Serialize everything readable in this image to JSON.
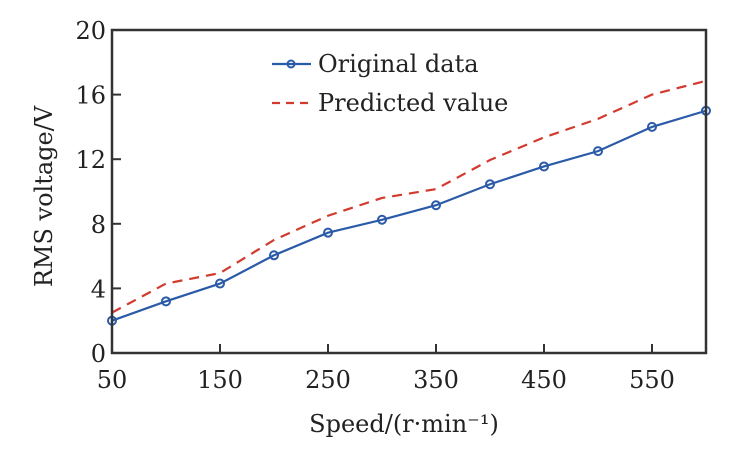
{
  "chart_data": {
    "type": "line",
    "title": "",
    "xlabel": "Speed/(r·min⁻¹)",
    "ylabel": "RMS voltage/V",
    "xlim": [
      50,
      600
    ],
    "ylim": [
      0,
      20
    ],
    "xticks": [
      50,
      150,
      250,
      350,
      450,
      550
    ],
    "xtick_labels": [
      "50",
      "150",
      "250",
      "350",
      "450",
      "550"
    ],
    "yticks": [
      0,
      4,
      8,
      12,
      16,
      20
    ],
    "ytick_labels": [
      "0",
      "4",
      "8",
      "12",
      "16",
      "20"
    ],
    "grid": false,
    "legend_position": "top-center",
    "x": [
      50,
      100,
      150,
      200,
      250,
      300,
      350,
      400,
      450,
      500,
      550,
      600
    ],
    "series": [
      {
        "name": "Original data",
        "style": "solid-circle-markers",
        "color": "#2b5ba8",
        "values": [
          2.0,
          3.2,
          4.3,
          6.05,
          7.45,
          8.25,
          9.15,
          10.45,
          11.55,
          12.5,
          14.0,
          15.0
        ]
      },
      {
        "name": "Predicted value",
        "style": "dashed",
        "color": "#d23a2e",
        "values": [
          2.5,
          4.3,
          4.95,
          7.0,
          8.5,
          9.6,
          10.15,
          11.95,
          13.35,
          14.5,
          16.0,
          16.85
        ]
      }
    ]
  }
}
